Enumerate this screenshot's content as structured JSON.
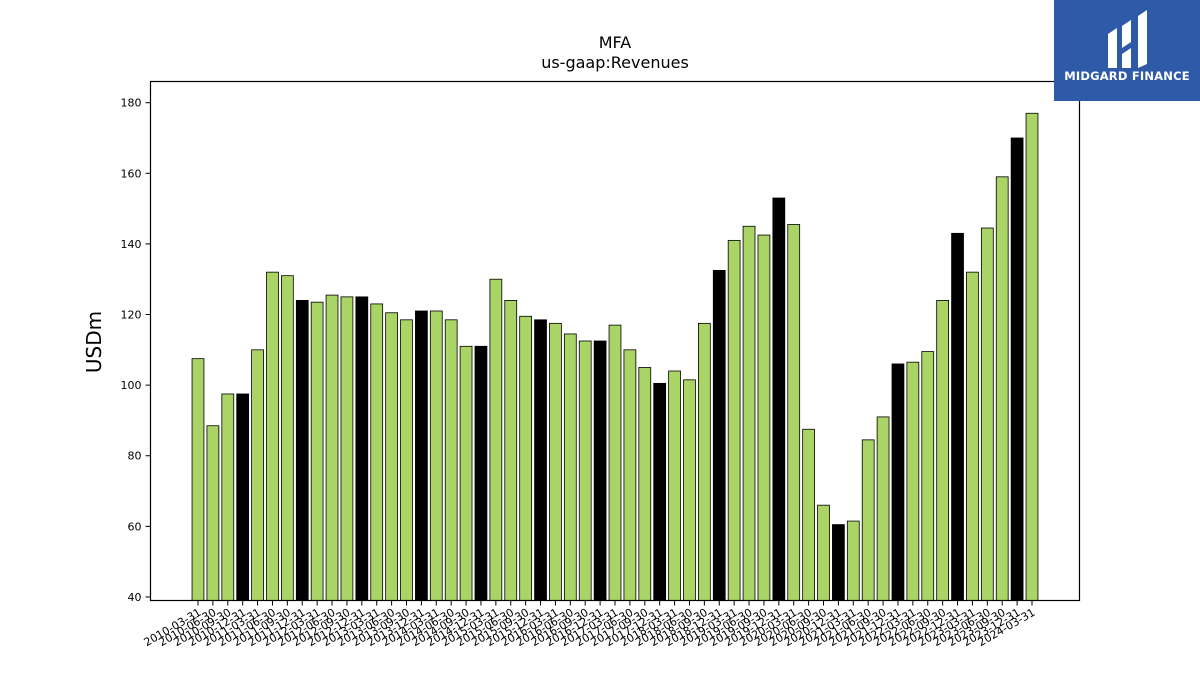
{
  "title_line1": "MFA",
  "title_line2": "us-gaap:Revenues",
  "logo": {
    "text": "MIDGARD FINANCE",
    "bg_color": "#2f5aa8",
    "icon": "midgard-logo-mark"
  },
  "colors": {
    "green": "#aad466",
    "black": "#000000"
  },
  "chart_data": {
    "type": "bar",
    "ylabel": "USDm",
    "ylim": [
      39,
      186
    ],
    "yticks": [
      40,
      60,
      80,
      100,
      120,
      140,
      160,
      180
    ],
    "grid": false,
    "categories": [
      "2010-03-31",
      "2010-06-30",
      "2010-09-30",
      "2010-12-31",
      "2011-03-31",
      "2011-06-30",
      "2011-09-30",
      "2011-12-31",
      "2012-03-31",
      "2012-06-30",
      "2012-09-30",
      "2012-12-31",
      "2013-03-31",
      "2013-06-30",
      "2013-09-30",
      "2013-12-31",
      "2014-03-31",
      "2014-06-30",
      "2014-09-30",
      "2014-12-31",
      "2015-03-31",
      "2015-06-30",
      "2015-09-30",
      "2015-12-31",
      "2016-03-31",
      "2016-06-30",
      "2016-09-30",
      "2016-12-31",
      "2017-03-31",
      "2017-06-30",
      "2017-09-30",
      "2017-12-31",
      "2018-03-31",
      "2018-06-30",
      "2018-09-30",
      "2018-12-31",
      "2019-03-31",
      "2019-06-30",
      "2019-09-30",
      "2019-12-31",
      "2020-03-31",
      "2020-06-30",
      "2020-09-30",
      "2020-12-31",
      "2021-03-31",
      "2021-06-30",
      "2021-09-30",
      "2021-12-31",
      "2022-03-31",
      "2022-06-30",
      "2022-09-30",
      "2022-12-31",
      "2023-03-31",
      "2023-06-30",
      "2023-09-30",
      "2023-12-31",
      "2024-03-31"
    ],
    "values": [
      107.5,
      88.5,
      97.5,
      97.5,
      110,
      132,
      131,
      124,
      123.5,
      125.5,
      125,
      125,
      123,
      120.5,
      118.5,
      121,
      121,
      118.5,
      111,
      111,
      130,
      124,
      119.5,
      118.5,
      117.5,
      114.5,
      112.5,
      112.5,
      117,
      110,
      105,
      100.5,
      104,
      101.5,
      117.5,
      132.5,
      141,
      145,
      142.5,
      153,
      145.5,
      87.5,
      66,
      60.5,
      61.5,
      84.5,
      91,
      106,
      106.5,
      109.5,
      124,
      143,
      132,
      144.5,
      159,
      170,
      177
    ],
    "bar_colors": [
      "green",
      "green",
      "green",
      "black",
      "green",
      "green",
      "green",
      "black",
      "green",
      "green",
      "green",
      "black",
      "green",
      "green",
      "green",
      "black",
      "green",
      "green",
      "green",
      "black",
      "green",
      "green",
      "green",
      "black",
      "green",
      "green",
      "green",
      "black",
      "green",
      "green",
      "green",
      "black",
      "green",
      "green",
      "green",
      "black",
      "green",
      "green",
      "green",
      "black",
      "green",
      "green",
      "green",
      "black",
      "green",
      "green",
      "green",
      "black",
      "green",
      "green",
      "green",
      "black",
      "green",
      "green",
      "green",
      "black",
      "green"
    ]
  }
}
